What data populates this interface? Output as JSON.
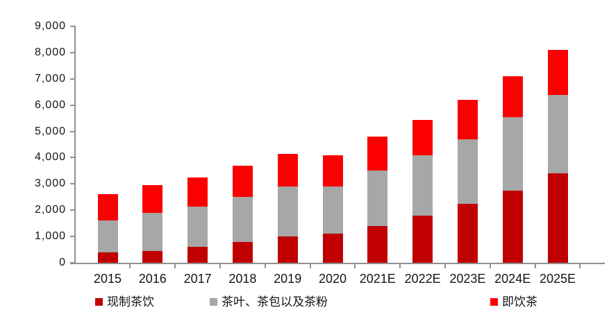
{
  "chart_data": {
    "type": "bar",
    "stacked": true,
    "categories": [
      "2015",
      "2016",
      "2017",
      "2018",
      "2019",
      "2020",
      "2021E",
      "2022E",
      "2023E",
      "2024E",
      "2025E"
    ],
    "series": [
      {
        "name": "现制茶饮",
        "color": "#c00000",
        "values": [
          400,
          450,
          600,
          800,
          1000,
          1100,
          1400,
          1800,
          2250,
          2750,
          3400
        ]
      },
      {
        "name": "茶叶、茶包以及茶粉",
        "color": "#a7a7a7",
        "values": [
          1200,
          1450,
          1550,
          1700,
          1900,
          1800,
          2100,
          2300,
          2450,
          2800,
          3000
        ]
      },
      {
        "name": "即饮茶",
        "color": "#fb0000",
        "values": [
          1000,
          1050,
          1100,
          1200,
          1250,
          1200,
          1300,
          1350,
          1500,
          1550,
          1700
        ]
      }
    ],
    "totals": [
      2600,
      2950,
      3250,
      3700,
      4150,
      4100,
      4800,
      5450,
      6200,
      7100,
      8100
    ],
    "title": "",
    "xlabel": "",
    "ylabel": "",
    "ylim": [
      0,
      9000
    ],
    "ytick_interval": 1000,
    "ytick_labels": [
      "0",
      "1,000",
      "2,000",
      "3,000",
      "4,000",
      "5,000",
      "6,000",
      "7,000",
      "8,000",
      "9,000"
    ],
    "grid": false,
    "legend_position": "bottom",
    "axis_color": "#8f8f8f"
  }
}
